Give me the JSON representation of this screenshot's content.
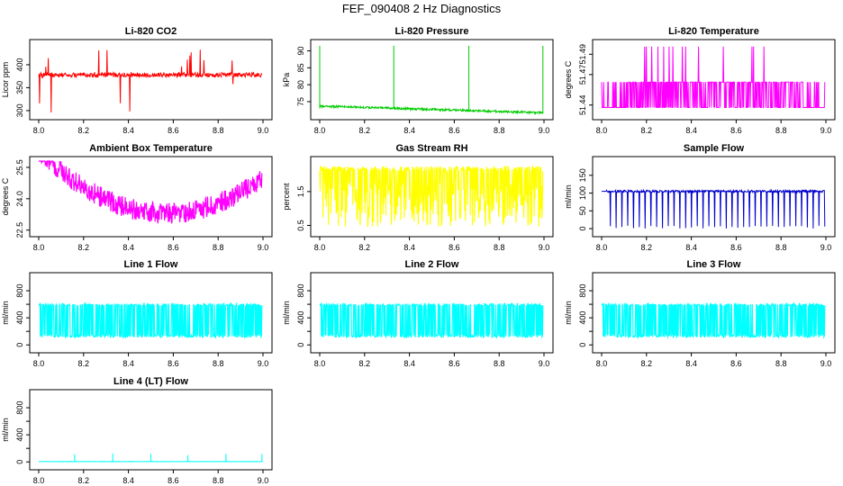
{
  "figure": {
    "title": "FEF_090408  2 Hz Diagnostics"
  },
  "chart_data": [
    {
      "type": "line",
      "title": "Li-820 CO2",
      "ylabel": "Licor ppm",
      "color": "#ff0000",
      "xlim": [
        8.0,
        9.0
      ],
      "ylim": [
        290,
        445
      ],
      "xticks": [
        "8.0",
        "8.2",
        "8.4",
        "8.6",
        "8.8",
        "9.0"
      ],
      "yticks": [
        {
          "v": 300,
          "label": "300"
        },
        {
          "v": 350,
          "label": "350"
        },
        {
          "v": 400,
          "label": "400"
        }
      ],
      "signal": "co2"
    },
    {
      "type": "line",
      "title": "Li-820 Pressure",
      "ylabel": "kPa",
      "color": "#00cc00",
      "xlim": [
        8.0,
        9.0
      ],
      "ylim": [
        71,
        92
      ],
      "xticks": [
        "8.0",
        "8.2",
        "8.4",
        "8.6",
        "8.8",
        "9.0"
      ],
      "yticks": [
        {
          "v": 75,
          "label": "75"
        },
        {
          "v": 80,
          "label": "80"
        },
        {
          "v": 85,
          "label": "85"
        },
        {
          "v": 90,
          "label": "90"
        }
      ],
      "signal": "pressure"
    },
    {
      "type": "line",
      "title": "Li-820 Temperature",
      "ylabel": "degrees C",
      "color": "#ff00ff",
      "xlim": [
        8.0,
        9.0
      ],
      "ylim": [
        51.43,
        51.5
      ],
      "xticks": [
        "8.0",
        "8.2",
        "8.4",
        "8.6",
        "8.8",
        "9.0"
      ],
      "yticks": [
        {
          "v": 51.44,
          "label": "51.44"
        },
        {
          "v": 51.47,
          "label": "51.47"
        },
        {
          "v": 51.49,
          "label": "51.49"
        }
      ],
      "signal": "temp"
    },
    {
      "type": "area",
      "title": "Ambient Box Temperature",
      "ylabel": "degrees C",
      "color": "#ff00ff",
      "xlim": [
        8.0,
        9.0
      ],
      "ylim": [
        22.4,
        25.8
      ],
      "xticks": [
        "8.0",
        "8.2",
        "8.4",
        "8.6",
        "8.8",
        "9.0"
      ],
      "yticks": [
        {
          "v": 22.5,
          "label": "22.5"
        },
        {
          "v": 24.0,
          "label": "24.0"
        },
        {
          "v": 25.5,
          "label": "25.5"
        }
      ],
      "signal": "ambient"
    },
    {
      "type": "area",
      "title": "Gas Stream RH",
      "ylabel": "percent",
      "color": "#ffff00",
      "xlim": [
        8.0,
        9.0
      ],
      "ylim": [
        0.3,
        2.4
      ],
      "xticks": [
        "8.0",
        "8.2",
        "8.4",
        "8.6",
        "8.8",
        "9.0"
      ],
      "yticks": [
        {
          "v": 0.5,
          "label": "0.5"
        },
        {
          "v": 1.5,
          "label": "1.5"
        }
      ],
      "signal": "rh"
    },
    {
      "type": "line",
      "title": "Sample Flow",
      "ylabel": "ml/min",
      "color": "#0000cc",
      "xlim": [
        8.0,
        9.0
      ],
      "ylim": [
        -10,
        190
      ],
      "xticks": [
        "8.0",
        "8.2",
        "8.4",
        "8.6",
        "8.8",
        "9.0"
      ],
      "yticks": [
        {
          "v": 0,
          "label": "0"
        },
        {
          "v": 50,
          "label": "50"
        },
        {
          "v": 100,
          "label": "100"
        },
        {
          "v": 150,
          "label": "150"
        }
      ],
      "signal": "sample"
    },
    {
      "type": "area",
      "title": "Line 1 Flow",
      "ylabel": "ml/min",
      "color": "#00ffff",
      "xlim": [
        8.0,
        9.0
      ],
      "ylim": [
        -50,
        1000
      ],
      "xticks": [
        "8.0",
        "8.2",
        "8.4",
        "8.6",
        "8.8",
        "9.0"
      ],
      "yticks": [
        {
          "v": 0,
          "label": "0"
        },
        {
          "v": 200,
          "label": ""
        },
        {
          "v": 400,
          "label": "400"
        },
        {
          "v": 600,
          "label": ""
        },
        {
          "v": 800,
          "label": "800"
        }
      ],
      "signal": "line1"
    },
    {
      "type": "area",
      "title": "Line 2 Flow",
      "ylabel": "ml/min",
      "color": "#00ffff",
      "xlim": [
        8.0,
        9.0
      ],
      "ylim": [
        -50,
        1000
      ],
      "xticks": [
        "8.0",
        "8.2",
        "8.4",
        "8.6",
        "8.8",
        "9.0"
      ],
      "yticks": [
        {
          "v": 0,
          "label": "0"
        },
        {
          "v": 200,
          "label": ""
        },
        {
          "v": 400,
          "label": "400"
        },
        {
          "v": 600,
          "label": ""
        },
        {
          "v": 800,
          "label": "800"
        }
      ],
      "signal": "line2"
    },
    {
      "type": "area",
      "title": "Line 3 Flow",
      "ylabel": "ml/min",
      "color": "#00ffff",
      "xlim": [
        8.0,
        9.0
      ],
      "ylim": [
        -50,
        1000
      ],
      "xticks": [
        "8.0",
        "8.2",
        "8.4",
        "8.6",
        "8.8",
        "9.0"
      ],
      "yticks": [
        {
          "v": 0,
          "label": "0"
        },
        {
          "v": 200,
          "label": ""
        },
        {
          "v": 400,
          "label": "400"
        },
        {
          "v": 600,
          "label": ""
        },
        {
          "v": 800,
          "label": "800"
        }
      ],
      "signal": "line3"
    },
    {
      "type": "line",
      "title": "Line 4 (LT) Flow",
      "ylabel": "ml/min",
      "color": "#00ffff",
      "xlim": [
        8.0,
        9.0
      ],
      "ylim": [
        -50,
        1000
      ],
      "xticks": [
        "8.0",
        "8.2",
        "8.4",
        "8.6",
        "8.8",
        "9.0"
      ],
      "yticks": [
        {
          "v": 0,
          "label": "0"
        },
        {
          "v": 200,
          "label": ""
        },
        {
          "v": 400,
          "label": "400"
        },
        {
          "v": 600,
          "label": ""
        },
        {
          "v": 800,
          "label": "800"
        }
      ],
      "signal": "line4"
    }
  ]
}
